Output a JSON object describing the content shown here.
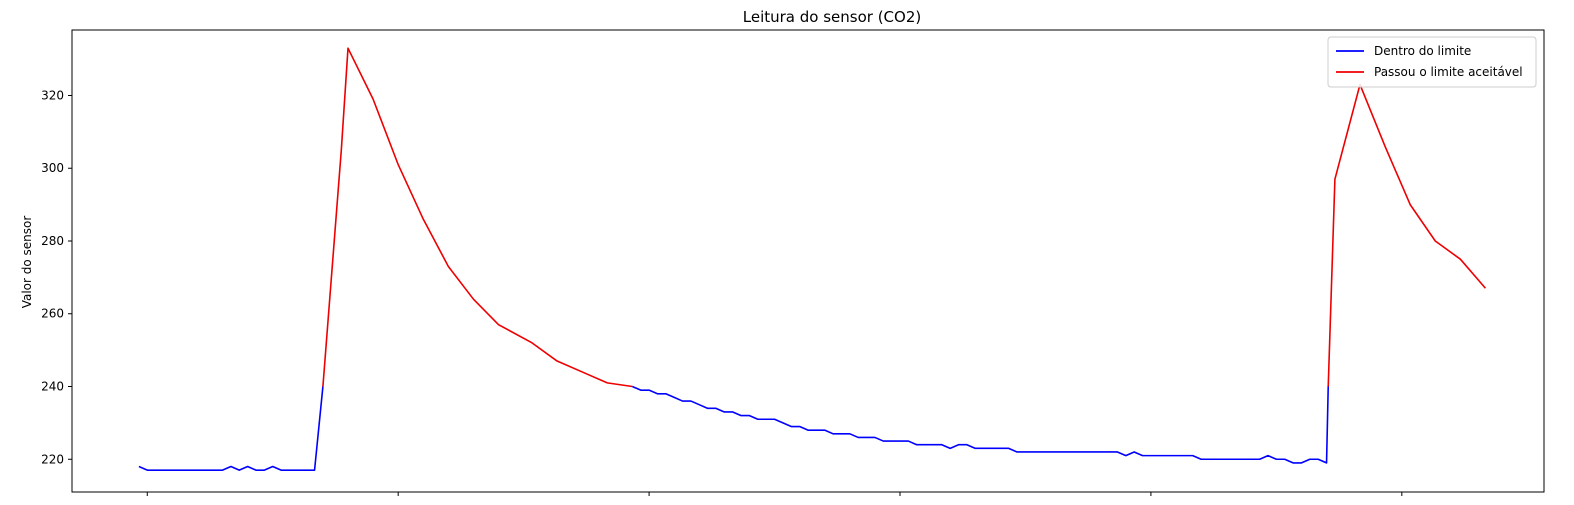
{
  "chart_data": {
    "type": "line",
    "title": "Leitura do sensor (CO2)",
    "xlabel": "",
    "ylabel": "Valor do sensor",
    "ylim": [
      211,
      338
    ],
    "xlim": [
      -9,
      167
    ],
    "yticks": [
      220,
      240,
      260,
      280,
      300,
      320
    ],
    "xticks": [
      0,
      30,
      60,
      90,
      120,
      150
    ],
    "grid": false,
    "legend_position": "top-right",
    "series": [
      {
        "name": "Dentro do limite",
        "color": "#0000ff",
        "values": [
          [
            -1,
            218
          ],
          [
            0,
            217
          ],
          [
            1,
            217
          ],
          [
            2,
            217
          ],
          [
            3,
            217
          ],
          [
            4,
            217
          ],
          [
            5,
            217
          ],
          [
            6,
            217
          ],
          [
            7,
            217
          ],
          [
            8,
            217
          ],
          [
            9,
            217
          ],
          [
            10,
            218
          ],
          [
            11,
            217
          ],
          [
            12,
            218
          ],
          [
            13,
            217
          ],
          [
            14,
            217
          ],
          [
            15,
            218
          ],
          [
            16,
            217
          ],
          [
            17,
            217
          ],
          [
            18,
            217
          ],
          [
            19,
            217
          ],
          [
            20,
            217
          ],
          [
            21,
            240
          ],
          null,
          [
            58,
            240
          ],
          [
            59,
            239
          ],
          [
            60,
            239
          ],
          [
            61,
            238
          ],
          [
            62,
            238
          ],
          [
            63,
            237
          ],
          [
            64,
            236
          ],
          [
            65,
            236
          ],
          [
            66,
            235
          ],
          [
            67,
            234
          ],
          [
            68,
            234
          ],
          [
            69,
            233
          ],
          [
            70,
            233
          ],
          [
            71,
            232
          ],
          [
            72,
            232
          ],
          [
            73,
            231
          ],
          [
            74,
            231
          ],
          [
            75,
            231
          ],
          [
            76,
            230
          ],
          [
            77,
            229
          ],
          [
            78,
            229
          ],
          [
            79,
            228
          ],
          [
            80,
            228
          ],
          [
            81,
            228
          ],
          [
            82,
            227
          ],
          [
            83,
            227
          ],
          [
            84,
            227
          ],
          [
            85,
            226
          ],
          [
            86,
            226
          ],
          [
            87,
            226
          ],
          [
            88,
            225
          ],
          [
            89,
            225
          ],
          [
            90,
            225
          ],
          [
            91,
            225
          ],
          [
            92,
            224
          ],
          [
            93,
            224
          ],
          [
            94,
            224
          ],
          [
            95,
            224
          ],
          [
            96,
            223
          ],
          [
            97,
            224
          ],
          [
            98,
            224
          ],
          [
            99,
            223
          ],
          [
            100,
            223
          ],
          [
            101,
            223
          ],
          [
            102,
            223
          ],
          [
            103,
            223
          ],
          [
            104,
            222
          ],
          [
            105,
            222
          ],
          [
            106,
            222
          ],
          [
            107,
            222
          ],
          [
            108,
            222
          ],
          [
            109,
            222
          ],
          [
            110,
            222
          ],
          [
            111,
            222
          ],
          [
            112,
            222
          ],
          [
            113,
            222
          ],
          [
            114,
            222
          ],
          [
            115,
            222
          ],
          [
            116,
            222
          ],
          [
            117,
            221
          ],
          [
            118,
            222
          ],
          [
            119,
            221
          ],
          [
            120,
            221
          ],
          [
            121,
            221
          ],
          [
            122,
            221
          ],
          [
            123,
            221
          ],
          [
            124,
            221
          ],
          [
            125,
            221
          ],
          [
            126,
            220
          ],
          [
            127,
            220
          ],
          [
            128,
            220
          ],
          [
            129,
            220
          ],
          [
            130,
            220
          ],
          [
            131,
            220
          ],
          [
            132,
            220
          ],
          [
            133,
            220
          ],
          [
            134,
            221
          ],
          [
            135,
            220
          ],
          [
            136,
            220
          ],
          [
            137,
            219
          ],
          [
            138,
            219
          ],
          [
            139,
            220
          ],
          [
            140,
            220
          ],
          [
            141,
            219
          ],
          [
            141.2,
            240
          ]
        ]
      },
      {
        "name": "Passou o limite aceitável",
        "color": "#ee0000",
        "values": [
          [
            21,
            240
          ],
          [
            23.2,
            305
          ],
          [
            24,
            333
          ],
          [
            27,
            319
          ],
          [
            30,
            301
          ],
          [
            33,
            286
          ],
          [
            36,
            273
          ],
          [
            39,
            264
          ],
          [
            42,
            257
          ],
          [
            46,
            252
          ],
          [
            49,
            247
          ],
          [
            52,
            244
          ],
          [
            55,
            241
          ],
          [
            58,
            240
          ],
          null,
          [
            141.2,
            240
          ],
          [
            142,
            297
          ],
          [
            145,
            323
          ],
          [
            148,
            306
          ],
          [
            151,
            290
          ],
          [
            154,
            280
          ],
          [
            157,
            275
          ],
          [
            160,
            267
          ]
        ]
      }
    ]
  }
}
